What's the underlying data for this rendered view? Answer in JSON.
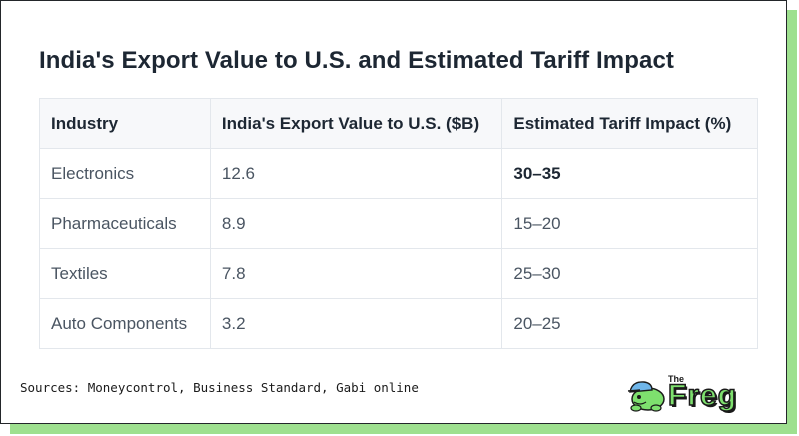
{
  "title": "India's Export Value to U.S. and Estimated Tariff Impact",
  "table": {
    "headers": [
      "Industry",
      "India's Export Value to U.S. ($B)",
      "Estimated Tariff Impact (%)"
    ],
    "rows": [
      {
        "industry": "Electronics",
        "export": "12.6",
        "impact": "30–35"
      },
      {
        "industry": "Pharmaceuticals",
        "export": "8.9",
        "impact": "15–20"
      },
      {
        "industry": "Textiles",
        "export": "7.8",
        "impact": "25–30"
      },
      {
        "industry": "Auto Components",
        "export": "3.2",
        "impact": "20–25"
      }
    ]
  },
  "sources": "Sources: Moneycontrol, Business Standard, Gabi online",
  "logo": {
    "small_text": "The",
    "word": "Freg",
    "icon": "frog-mascot-icon"
  },
  "colors": {
    "accent_green": "#9ee08f",
    "border": "#23262a"
  }
}
